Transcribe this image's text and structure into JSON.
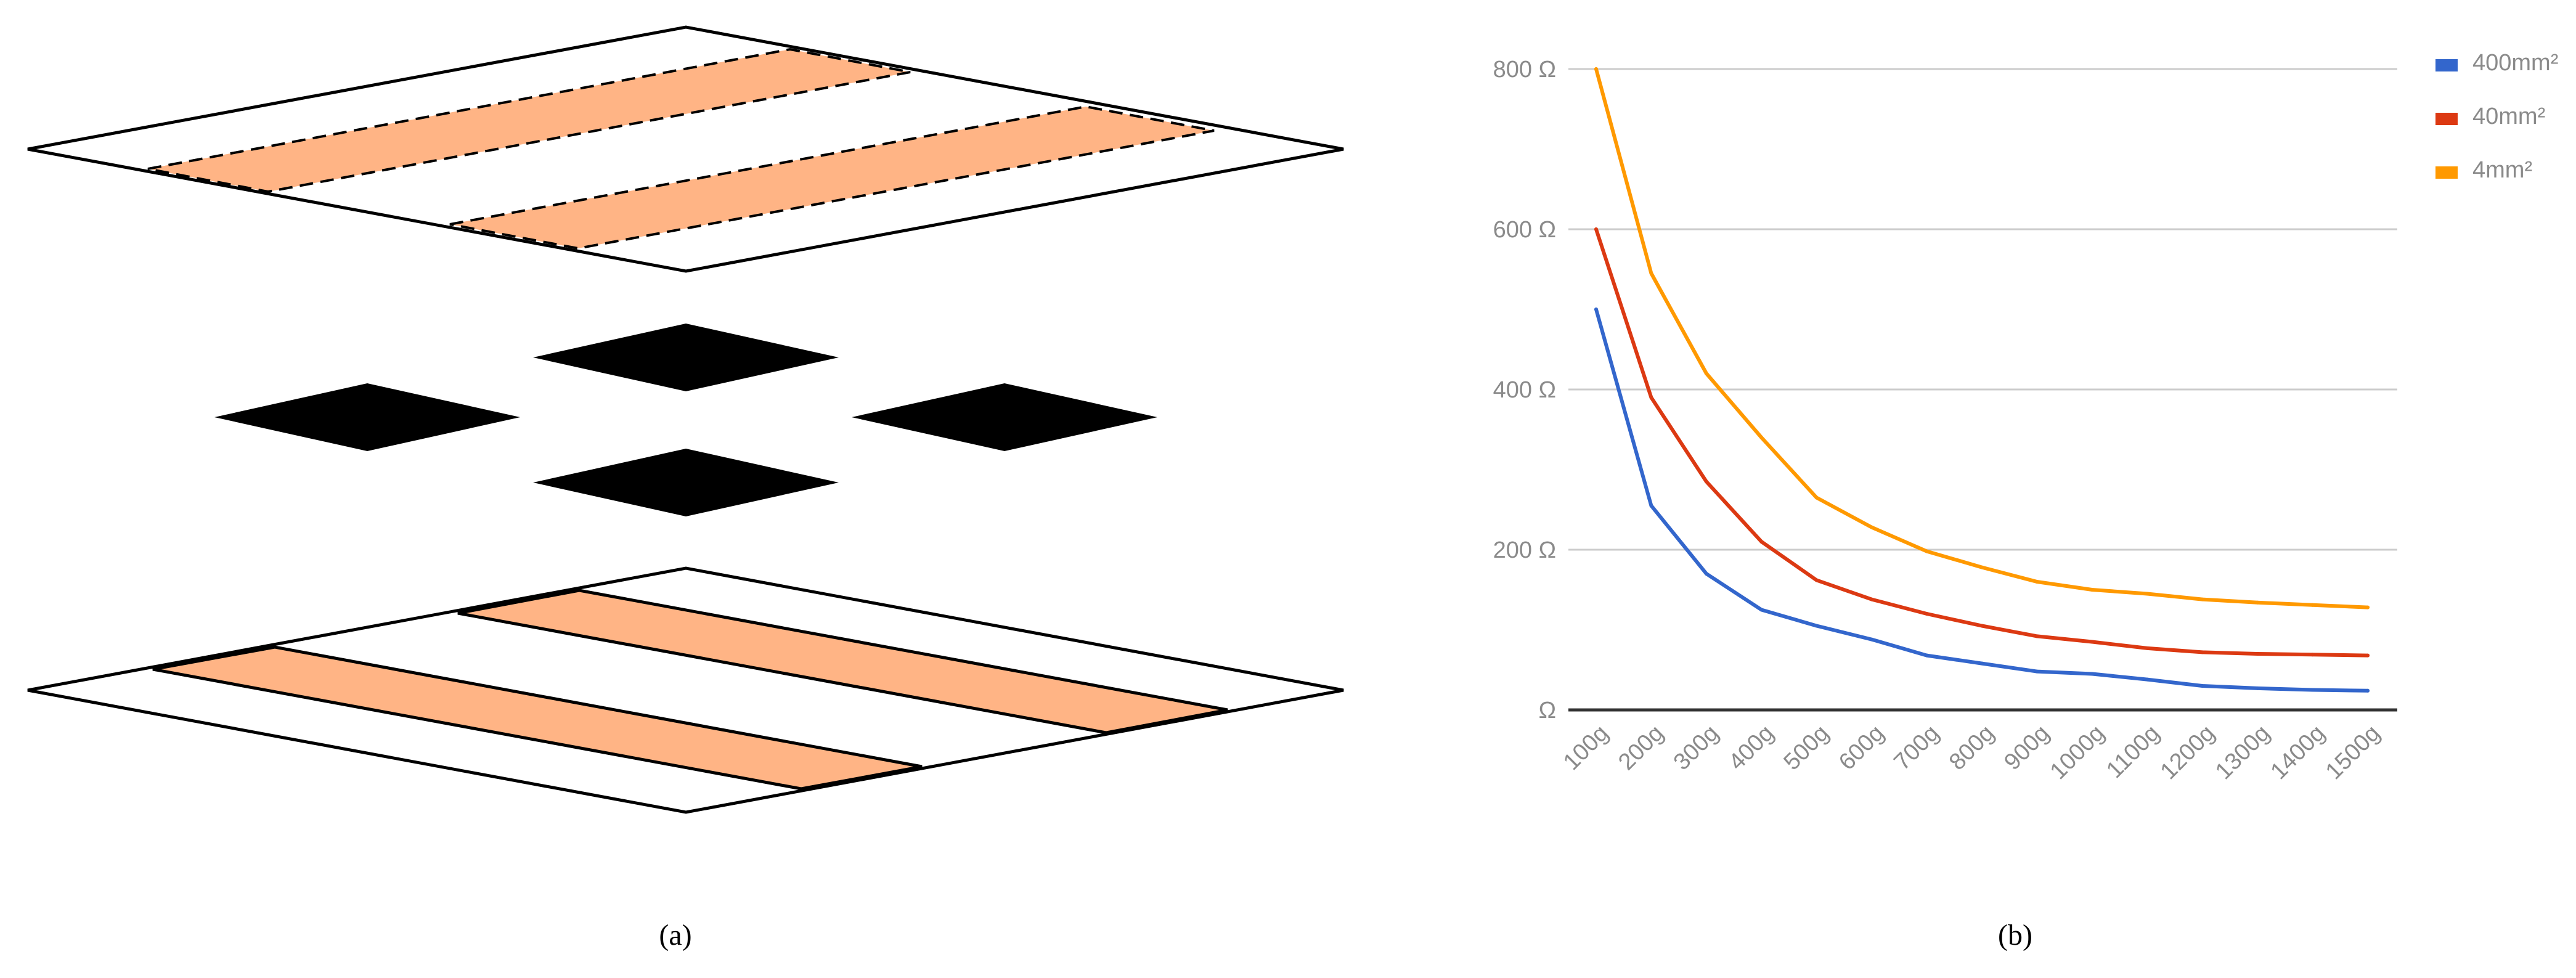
{
  "captions": {
    "a": "(a)",
    "b": "(b)"
  },
  "colors": {
    "strip": "#FFB485",
    "pad": "#000000",
    "layer_fill": "#ffffff",
    "outline": "#000000"
  },
  "chart_data": {
    "type": "line",
    "title": "",
    "xlabel": "",
    "ylabel": "",
    "categories": [
      "100g",
      "200g",
      "300g",
      "400g",
      "500g",
      "600g",
      "700g",
      "800g",
      "900g",
      "1000g",
      "1100g",
      "1200g",
      "1300g",
      "1400g",
      "1500g"
    ],
    "ylim": [
      0,
      800
    ],
    "yticks": [
      0,
      200,
      400,
      600,
      800
    ],
    "ytick_labels": [
      "Ω",
      "200 Ω",
      "400 Ω",
      "600 Ω",
      "800 Ω"
    ],
    "grid": true,
    "legend": "right",
    "series": [
      {
        "name": "400mm²",
        "color": "#3366CC",
        "values": [
          500,
          255,
          170,
          125,
          105,
          88,
          68,
          58,
          48,
          45,
          38,
          30,
          27,
          25,
          24
        ]
      },
      {
        "name": "40mm²",
        "color": "#DC3912",
        "values": [
          600,
          390,
          285,
          210,
          162,
          138,
          120,
          105,
          92,
          85,
          77,
          72,
          70,
          69,
          68
        ]
      },
      {
        "name": "4mm²",
        "color": "#FF9900",
        "values": [
          800,
          545,
          420,
          340,
          265,
          228,
          198,
          178,
          160,
          150,
          145,
          138,
          134,
          131,
          128
        ]
      }
    ]
  }
}
